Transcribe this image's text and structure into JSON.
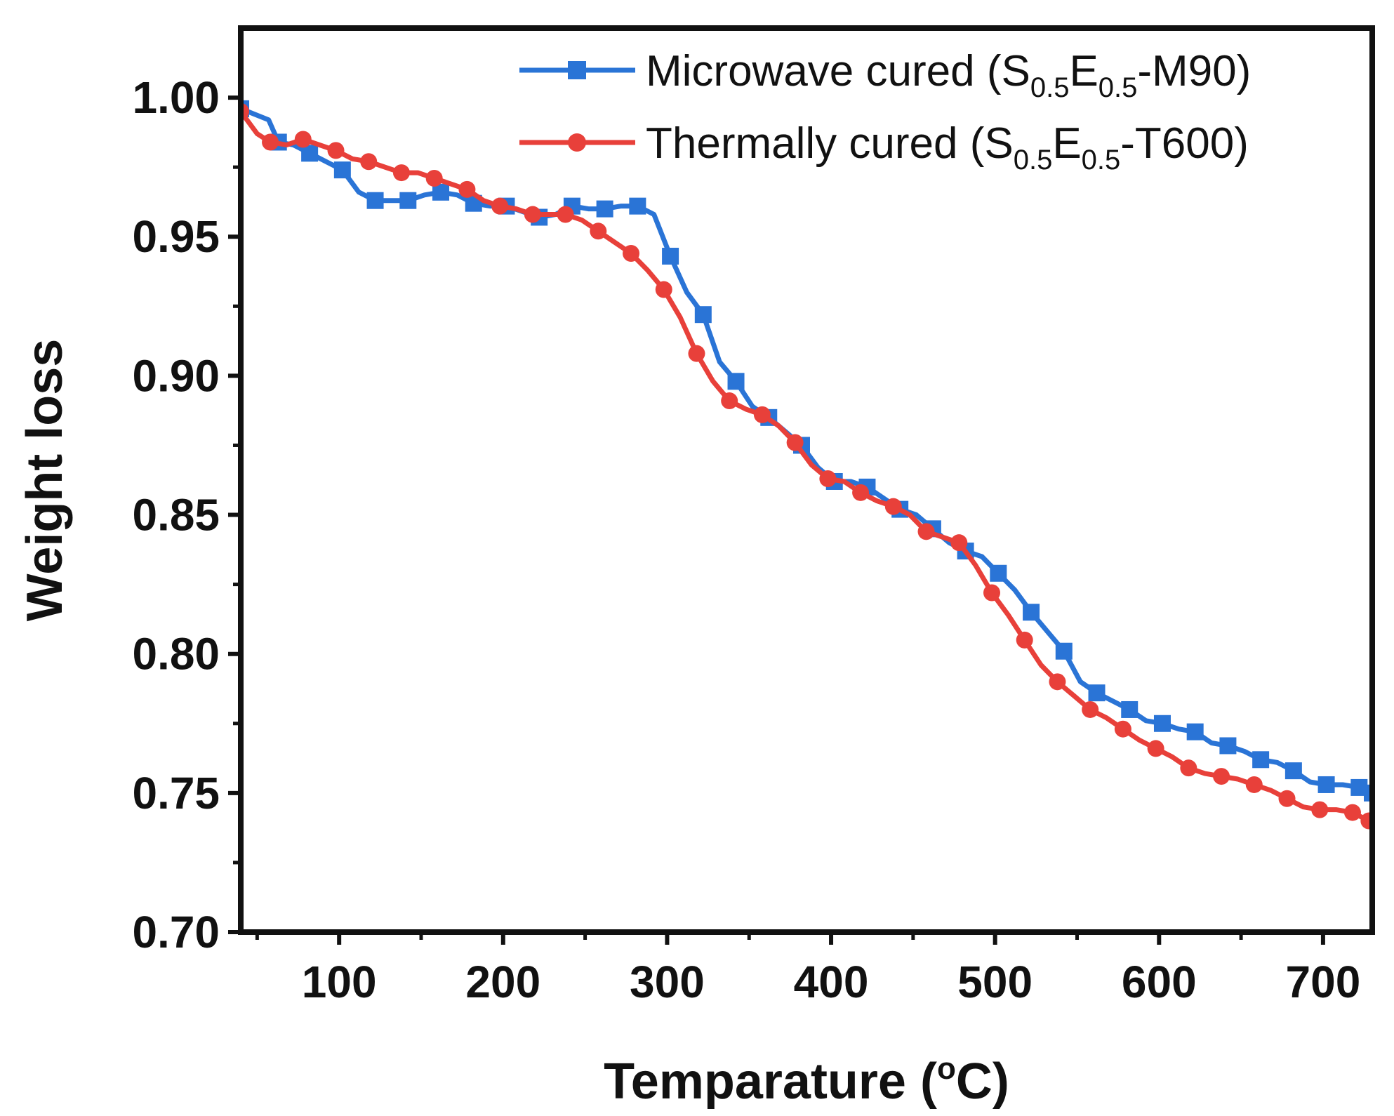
{
  "chart_data": {
    "type": "line",
    "title": "",
    "xlabel": "Temparature (",
    "xlabel_degree": "o",
    "xlabel_unit": "C)",
    "ylabel": "Weight loss",
    "xlim": [
      40,
      730
    ],
    "ylim": [
      0.7,
      1.025
    ],
    "x_ticks": [
      100,
      200,
      300,
      400,
      500,
      600,
      700
    ],
    "x_tick_labels": [
      "100",
      "200",
      "300",
      "400",
      "500",
      "600",
      "700"
    ],
    "y_ticks": [
      0.7,
      0.75,
      0.8,
      0.85,
      0.9,
      0.95,
      1.0
    ],
    "y_tick_labels": [
      "0.70",
      "0.75",
      "0.80",
      "0.85",
      "0.90",
      "0.95",
      "1.00"
    ],
    "legend_position": "top-right",
    "grid": false,
    "series": [
      {
        "name": "Microwave cured",
        "legend_prefix": "Microwave cured (S",
        "legend_sub1": "0.5",
        "legend_mid": "E",
        "legend_sub2": "0.5",
        "legend_suffix": "-M90)",
        "color": "#2a74d6",
        "marker": "square",
        "x": [
          40,
          57,
          63,
          72,
          82,
          92,
          102,
          112,
          122,
          132,
          142,
          152,
          162,
          172,
          182,
          192,
          202,
          212,
          222,
          232,
          242,
          252,
          262,
          272,
          282,
          292,
          302,
          312,
          322,
          332,
          342,
          352,
          362,
          372,
          382,
          392,
          402,
          412,
          422,
          432,
          442,
          452,
          462,
          472,
          482,
          492,
          502,
          512,
          522,
          532,
          542,
          552,
          562,
          572,
          582,
          592,
          602,
          612,
          622,
          632,
          642,
          652,
          662,
          672,
          682,
          692,
          702,
          712,
          722,
          730
        ],
        "y": [
          0.996,
          0.992,
          0.984,
          0.983,
          0.98,
          0.977,
          0.974,
          0.966,
          0.963,
          0.963,
          0.963,
          0.965,
          0.966,
          0.965,
          0.962,
          0.961,
          0.961,
          0.959,
          0.957,
          0.958,
          0.961,
          0.96,
          0.96,
          0.961,
          0.961,
          0.958,
          0.943,
          0.93,
          0.922,
          0.905,
          0.898,
          0.889,
          0.885,
          0.88,
          0.875,
          0.867,
          0.862,
          0.862,
          0.86,
          0.856,
          0.852,
          0.85,
          0.845,
          0.84,
          0.837,
          0.835,
          0.829,
          0.823,
          0.815,
          0.808,
          0.801,
          0.79,
          0.786,
          0.783,
          0.78,
          0.776,
          0.775,
          0.773,
          0.772,
          0.768,
          0.767,
          0.765,
          0.762,
          0.761,
          0.758,
          0.754,
          0.753,
          0.753,
          0.752,
          0.75
        ]
      },
      {
        "name": "Thermally cured",
        "legend_prefix": "Thermally cured (S",
        "legend_sub1": "0.5",
        "legend_mid": "E",
        "legend_sub2": "0.5",
        "legend_suffix": "-T600)",
        "color": "#e8403a",
        "marker": "circle",
        "x": [
          40,
          50,
          58,
          68,
          78,
          88,
          98,
          108,
          118,
          128,
          138,
          148,
          158,
          168,
          178,
          188,
          198,
          208,
          218,
          228,
          238,
          248,
          258,
          268,
          278,
          288,
          298,
          308,
          318,
          328,
          338,
          348,
          358,
          368,
          378,
          388,
          398,
          408,
          418,
          428,
          438,
          448,
          458,
          468,
          478,
          488,
          498,
          508,
          518,
          528,
          538,
          548,
          558,
          568,
          578,
          588,
          598,
          608,
          618,
          628,
          638,
          648,
          658,
          668,
          678,
          688,
          698,
          708,
          718,
          728
        ],
        "y": [
          0.995,
          0.987,
          0.984,
          0.983,
          0.985,
          0.983,
          0.981,
          0.978,
          0.977,
          0.975,
          0.973,
          0.973,
          0.971,
          0.969,
          0.967,
          0.963,
          0.961,
          0.96,
          0.958,
          0.958,
          0.958,
          0.956,
          0.952,
          0.948,
          0.944,
          0.938,
          0.931,
          0.921,
          0.908,
          0.898,
          0.891,
          0.888,
          0.886,
          0.882,
          0.876,
          0.868,
          0.863,
          0.862,
          0.858,
          0.855,
          0.853,
          0.85,
          0.844,
          0.842,
          0.84,
          0.832,
          0.822,
          0.814,
          0.805,
          0.796,
          0.79,
          0.785,
          0.78,
          0.777,
          0.773,
          0.769,
          0.766,
          0.763,
          0.759,
          0.757,
          0.756,
          0.755,
          0.753,
          0.751,
          0.748,
          0.745,
          0.744,
          0.744,
          0.743,
          0.74
        ]
      }
    ]
  }
}
